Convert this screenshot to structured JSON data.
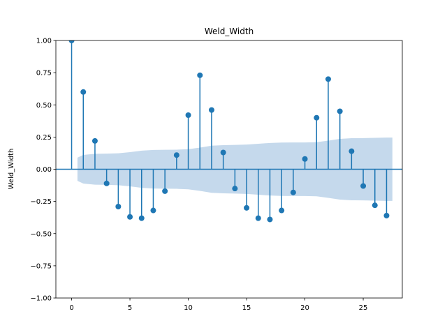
{
  "chart_data": {
    "type": "stem",
    "title": "Weld_Width",
    "xlabel": "",
    "ylabel": "Weld_Width",
    "xlim": [
      -1.35,
      28.35
    ],
    "ylim": [
      -1.0,
      1.0
    ],
    "x_ticks": [
      0,
      5,
      10,
      15,
      20,
      25
    ],
    "x_tick_labels": [
      "0",
      "5",
      "10",
      "15",
      "20",
      "25"
    ],
    "y_ticks": [
      -1.0,
      -0.75,
      -0.5,
      -0.25,
      0.0,
      0.25,
      0.5,
      0.75,
      1.0
    ],
    "y_tick_labels": [
      "−1.00",
      "−0.75",
      "−0.50",
      "−0.25",
      "0.00",
      "0.25",
      "0.50",
      "0.75",
      "1.00"
    ],
    "grid": false,
    "lags": [
      0,
      1,
      2,
      3,
      4,
      5,
      6,
      7,
      8,
      9,
      10,
      11,
      12,
      13,
      14,
      15,
      16,
      17,
      18,
      19,
      20,
      21,
      22,
      23,
      24,
      25,
      26,
      27
    ],
    "values": [
      1.0,
      0.6,
      0.22,
      -0.11,
      -0.29,
      -0.37,
      -0.38,
      -0.32,
      -0.17,
      0.11,
      0.42,
      0.73,
      0.46,
      0.13,
      -0.15,
      -0.3,
      -0.38,
      -0.39,
      -0.32,
      -0.18,
      0.08,
      0.4,
      0.7,
      0.45,
      0.14,
      -0.13,
      -0.28,
      -0.36
    ],
    "confidence_band": {
      "x": [
        0.5,
        1,
        2,
        3,
        4,
        5,
        6,
        7,
        8,
        9,
        10,
        11,
        12,
        13,
        14,
        15,
        16,
        17,
        18,
        19,
        20,
        21,
        22,
        23,
        24,
        25,
        26,
        27,
        27.5
      ],
      "upper": [
        0.09,
        0.111,
        0.12,
        0.121,
        0.124,
        0.133,
        0.144,
        0.15,
        0.151,
        0.152,
        0.156,
        0.168,
        0.183,
        0.187,
        0.189,
        0.192,
        0.198,
        0.204,
        0.207,
        0.208,
        0.208,
        0.21,
        0.222,
        0.236,
        0.241,
        0.242,
        0.244,
        0.246,
        0.246
      ]
    },
    "colors": {
      "stem": "#1f77b4",
      "marker": "#1f77b4",
      "baseline": "#1f77b4",
      "band": "#c5d9ec"
    }
  }
}
